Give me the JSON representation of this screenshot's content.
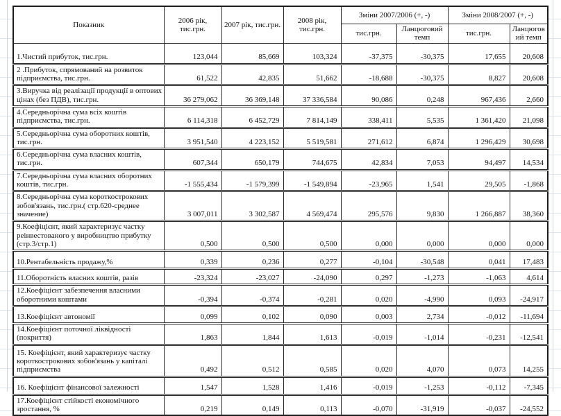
{
  "colors": {
    "table_border": "#2a2a2a",
    "gridline": "#dde4f0",
    "text": "#141414",
    "background": "#ffffff"
  },
  "table": {
    "header": {
      "indicator": "Показник",
      "col_2006": "2006 рік, тис.грн.",
      "col_2007": "2007 рік, тис.грн.",
      "col_2008": "2008 рік, тис.грн.",
      "group_2007_2006": "Зміни  2007/2006 (+, -)",
      "group_2008_2007": "Зміни  2008/2007 (+, -)",
      "sub_thousands": "тис.грн.",
      "sub_chain": "Ланцюговий темп"
    },
    "rows": [
      {
        "label": "1.Чистий прибуток, тис.грн.",
        "values": [
          "123,044",
          "85,669",
          "103,324",
          "-37,375",
          "-30,375",
          "17,655",
          "20,608"
        ]
      },
      {
        "label": "2 .Прибуток, спрямований на розвиток підприємства, тис.грн.",
        "values": [
          "61,522",
          "42,835",
          "51,662",
          "-18,688",
          "-30,375",
          "8,827",
          "20,608"
        ]
      },
      {
        "label": "3.Виручка від реалізації продукції в оптових цінах (без ПДВ), тис.грн.",
        "values": [
          "36 279,062",
          "36 369,148",
          "37 336,584",
          "90,086",
          "0,248",
          "967,436",
          "2,660"
        ]
      },
      {
        "label": "4.Середньорічна сума всіх коштів підприємства, тис.грн.",
        "values": [
          "6 114,318",
          "6 452,729",
          "7 814,149",
          "338,411",
          "5,535",
          "1 361,420",
          "21,098"
        ]
      },
      {
        "label": "5.Середньорічна сума  оборотних коштів, тис.грн.",
        "values": [
          "3 951,540",
          "4 223,152",
          "5 519,581",
          "271,612",
          "6,874",
          "1 296,429",
          "30,698"
        ]
      },
      {
        "label": "6.Середньорічна сума  власних коштів, тис.грн.",
        "values": [
          "607,344",
          "650,179",
          "744,675",
          "42,834",
          "7,053",
          "94,497",
          "14,534"
        ]
      },
      {
        "label": "7.Середньорічна сума  власних оборотних коштів, тис.грн.",
        "values": [
          "-1 555,434",
          "-1 579,399",
          "-1 549,894",
          "-23,965",
          "1,541",
          "29,505",
          "-1,868"
        ]
      },
      {
        "label": "8.Середньорічна сума короткострокових зобов'язань, тис.грн.( стр.620-среднее значение)",
        "values": [
          "3 007,011",
          "3 302,587",
          "4 569,474",
          "295,576",
          "9,830",
          "1 266,887",
          "38,360"
        ]
      },
      {
        "label": "9.Коефіцієнт, який характеризує частку реінвестованого у виробництво прибутку (стр.3/стр.1)",
        "values": [
          "0,500",
          "0,500",
          "0,500",
          "0,000",
          "0,000",
          "0,000",
          "0,000"
        ]
      },
      {
        "label": "10.Рентабельність продажу,%",
        "values": [
          "0,339",
          "0,236",
          "0,277",
          "-0,104",
          "-30,548",
          "0,041",
          "17,483"
        ]
      },
      {
        "label": "11.Оборотність власних коштів, разів",
        "values": [
          "-23,324",
          "-23,027",
          "-24,090",
          "0,297",
          "-1,273",
          "-1,063",
          "4,614"
        ]
      },
      {
        "label": "12.Коефіцієнт забезпечення  власними оборотними коштами",
        "values": [
          "-0,394",
          "-0,374",
          "-0,281",
          "0,020",
          "-4,990",
          "0,093",
          "-24,917"
        ]
      },
      {
        "label": "13.Коефіцієнт автономії",
        "values": [
          "0,099",
          "0,102",
          "0,090",
          "0,003",
          "2,734",
          "-0,012",
          "-11,694"
        ]
      },
      {
        "label": "14.Коефіцієнт поточної ліквідності (покриття)",
        "values": [
          "1,863",
          "1,844",
          "1,613",
          "-0,019",
          "-1,014",
          "-0,231",
          "-12,541"
        ]
      },
      {
        "label": "15. Коефіцієнт, який характеризує частку короткострокових зобов'язань у капіталі підприємства",
        "values": [
          "0,492",
          "0,512",
          "0,585",
          "0,020",
          "4,070",
          "0,073",
          "14,255"
        ]
      },
      {
        "label": "16. Коефіцієнт фінансової залежності",
        "values": [
          "1,547",
          "1,528",
          "1,416",
          "-0,019",
          "-1,253",
          "-0,112",
          "-7,345"
        ]
      },
      {
        "label": "17.Коефіцієнт стійкості економічного зростання, %",
        "values": [
          "0,219",
          "0,149",
          "0,113",
          "-0,070",
          "-31,919",
          "-0,037",
          "-24,552"
        ]
      }
    ]
  }
}
